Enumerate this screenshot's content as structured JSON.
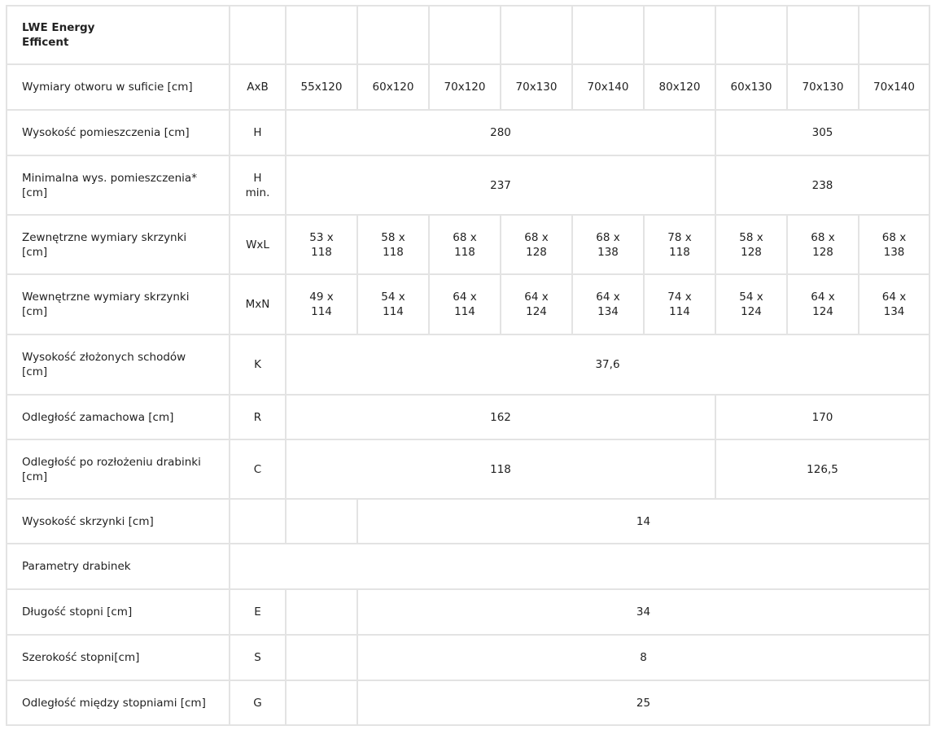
{
  "table": {
    "rows": [
      {
        "label": "LWE Energy\nEfficent",
        "bold": true,
        "symbol": "",
        "cells": [
          {
            "text": "",
            "span": 1
          },
          {
            "text": "",
            "span": 1
          },
          {
            "text": "",
            "span": 1
          },
          {
            "text": "",
            "span": 1
          },
          {
            "text": "",
            "span": 1
          },
          {
            "text": "",
            "span": 1
          },
          {
            "text": "",
            "span": 1
          },
          {
            "text": "",
            "span": 1
          },
          {
            "text": "",
            "span": 1
          }
        ]
      },
      {
        "label": "Wymiary otworu w suficie [cm]",
        "symbol": "AxB",
        "cells": [
          {
            "text": "55x120",
            "span": 1
          },
          {
            "text": "60x120",
            "span": 1
          },
          {
            "text": "70x120",
            "span": 1
          },
          {
            "text": "70x130",
            "span": 1
          },
          {
            "text": "70x140",
            "span": 1
          },
          {
            "text": "80x120",
            "span": 1
          },
          {
            "text": "60x130",
            "span": 1
          },
          {
            "text": "70x130",
            "span": 1
          },
          {
            "text": "70x140",
            "span": 1
          }
        ]
      },
      {
        "label": "Wysokość pomieszczenia [cm]",
        "symbol": "H",
        "cells": [
          {
            "text": "280",
            "span": 6
          },
          {
            "text": "305",
            "span": 3
          }
        ]
      },
      {
        "label": "Minimalna wys. pomieszczenia*\n[cm]",
        "symbol": "H\nmin.",
        "cells": [
          {
            "text": "237",
            "span": 6
          },
          {
            "text": "238",
            "span": 3
          }
        ]
      },
      {
        "label": "Zewnętrzne wymiary skrzynki\n[cm]",
        "symbol": "WxL",
        "cells": [
          {
            "text": "53 x\n118",
            "span": 1
          },
          {
            "text": "58 x\n118",
            "span": 1
          },
          {
            "text": "68 x\n118",
            "span": 1
          },
          {
            "text": "68 x\n128",
            "span": 1
          },
          {
            "text": "68 x\n138",
            "span": 1
          },
          {
            "text": "78 x\n118",
            "span": 1
          },
          {
            "text": "58 x\n128",
            "span": 1
          },
          {
            "text": "68 x\n128",
            "span": 1
          },
          {
            "text": "68 x\n138",
            "span": 1
          }
        ]
      },
      {
        "label": "Wewnętrzne wymiary skrzynki\n[cm]",
        "symbol": "MxN",
        "cells": [
          {
            "text": "49 x\n114",
            "span": 1
          },
          {
            "text": "54 x\n114",
            "span": 1
          },
          {
            "text": "64 x\n114",
            "span": 1
          },
          {
            "text": "64 x\n124",
            "span": 1
          },
          {
            "text": "64 x\n134",
            "span": 1
          },
          {
            "text": "74 x\n114",
            "span": 1
          },
          {
            "text": "54 x\n124",
            "span": 1
          },
          {
            "text": "64 x\n124",
            "span": 1
          },
          {
            "text": "64 x\n134",
            "span": 1
          }
        ]
      },
      {
        "label": "Wysokość złożonych schodów\n[cm]",
        "symbol": "K",
        "cells": [
          {
            "text": "37,6",
            "span": 9
          }
        ]
      },
      {
        "label": "Odległość zamachowa [cm]",
        "symbol": "R",
        "cells": [
          {
            "text": "162",
            "span": 6
          },
          {
            "text": "170",
            "span": 3
          }
        ]
      },
      {
        "label": "Odległość po rozłożeniu drabinki\n[cm]",
        "symbol": "C",
        "cells": [
          {
            "text": "118",
            "span": 6
          },
          {
            "text": "126,5",
            "span": 3
          }
        ]
      },
      {
        "label": "Wysokość skrzynki [cm]",
        "symbol": "",
        "cells": [
          {
            "text": "",
            "span": 1
          },
          {
            "text": "14",
            "span": 8
          }
        ]
      },
      {
        "label": "Parametry drabinek",
        "symbol": null,
        "cells": [
          {
            "text": "",
            "span": 10
          }
        ]
      },
      {
        "label": "Długość stopni  [cm]",
        "symbol": "E",
        "cells": [
          {
            "text": "",
            "span": 1
          },
          {
            "text": "34",
            "span": 8
          }
        ]
      },
      {
        "label": "Szerokość stopni[cm]",
        "symbol": "S",
        "cells": [
          {
            "text": "",
            "span": 1
          },
          {
            "text": "8",
            "span": 8
          }
        ]
      },
      {
        "label": "Odległość między stopniami [cm]",
        "symbol": "G",
        "cells": [
          {
            "text": "",
            "span": 1
          },
          {
            "text": "25",
            "span": 8
          }
        ]
      }
    ]
  }
}
